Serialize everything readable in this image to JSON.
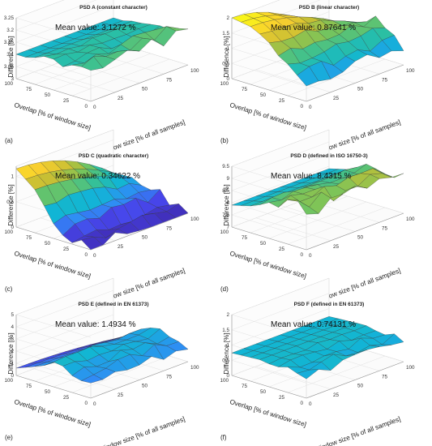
{
  "chart_data": [
    {
      "type": "surface",
      "panel_label": "(a)",
      "title": "PSD A (constant character)",
      "mean_text": "Mean value: 3.1272 %",
      "zlabel": "Difference [%]",
      "xlabel": "Window size [% of all samples]",
      "ylabel": "Overlap [% of window size]",
      "xticks": [
        "0",
        "25",
        "50",
        "75",
        "100"
      ],
      "yticks": [
        "0",
        "25",
        "50",
        "75",
        "100"
      ],
      "zticks": [
        "3",
        "3.05",
        "3.1",
        "3.15",
        "3.2",
        "3.25"
      ],
      "zlim": [
        3,
        3.25
      ],
      "surface": {
        "baseline": [
          3.14,
          3.14,
          3.13,
          3.12,
          3.12,
          3.12,
          3.11,
          3.1,
          3.1
        ],
        "slope": 0,
        "noise": 0.06,
        "noise_cols": 6,
        "seed": 11
      }
    },
    {
      "type": "surface",
      "panel_label": "(b)",
      "title": "PSD B (linear character)",
      "mean_text": "Mean value: 0.87641 %",
      "zlabel": "Difference [%]",
      "xlabel": "Window size [% of all samples]",
      "ylabel": "Overlap [% of window size]",
      "xticks": [
        "0",
        "25",
        "50",
        "75",
        "100"
      ],
      "yticks": [
        "0",
        "25",
        "50",
        "75",
        "100"
      ],
      "zticks": [
        "0",
        "0.5",
        "1",
        "1.5",
        "2"
      ],
      "zlim": [
        0,
        2
      ],
      "surface": {
        "baseline": [
          0.6,
          0.8,
          1.0,
          1.2,
          1.5,
          1.7,
          1.9,
          1.95,
          2.0
        ],
        "slope": -1.9,
        "noise": 0.45,
        "noise_cols": 6,
        "seed": 23
      }
    },
    {
      "type": "surface",
      "panel_label": "(c)",
      "title": "PSD C (quadratic character)",
      "mean_text": "Mean value: 0.34622 %",
      "zlabel": "Difference [%]",
      "xlabel": "Window size [% of all samples]",
      "ylabel": "Overlap [% of window size]",
      "xticks": [
        "0",
        "25",
        "50",
        "75",
        "100"
      ],
      "yticks": [
        "0",
        "25",
        "50",
        "75",
        "100"
      ],
      "zticks": [
        "0",
        "0.5",
        "1"
      ],
      "zlim": [
        0,
        1.2
      ],
      "surface": {
        "baseline": [
          0.05,
          0.08,
          0.1,
          0.2,
          0.35,
          0.6,
          0.85,
          1.0,
          1.15
        ],
        "slope": -0.8,
        "noise": 0.35,
        "noise_cols": 6,
        "seed": 37
      }
    },
    {
      "type": "surface",
      "panel_label": "(d)",
      "title": "PSD D (defined in ISO 16750-3)",
      "mean_text": "Mean value: 8.4315 %",
      "zlabel": "Difference [%]",
      "xlabel": "Window size [% of all samples]",
      "ylabel": "Overlap [% of window size]",
      "xticks": [
        "0",
        "25",
        "50",
        "75",
        "100"
      ],
      "yticks": [
        "0",
        "25",
        "50",
        "75",
        "100"
      ],
      "zticks": [
        "7",
        "7.5",
        "8",
        "8.5",
        "9",
        "9.5"
      ],
      "zlim": [
        7,
        9.5
      ],
      "surface": {
        "baseline": [
          8.6,
          8.6,
          8.6,
          8.5,
          8.4,
          8.3,
          8.1,
          8.0,
          7.9
        ],
        "slope": 0,
        "noise": 0.7,
        "noise_cols": 6,
        "seed": 41
      }
    },
    {
      "type": "surface",
      "panel_label": "(e)",
      "title": "PSD E (defined in EN 61373)",
      "mean_text": "Mean value: 1.4934 %",
      "zlabel": "Difference [%]",
      "xlabel": "Window size [% of all samples]",
      "ylabel": "Overlap [% of window size]",
      "xticks": [
        "0",
        "25",
        "50",
        "75",
        "100"
      ],
      "yticks": [
        "0",
        "25",
        "50",
        "75",
        "100"
      ],
      "zticks": [
        "0",
        "1",
        "2",
        "3",
        "4",
        "5"
      ],
      "zlim": [
        0,
        5
      ],
      "surface": {
        "baseline": [
          1.5,
          1.6,
          1.7,
          1.8,
          1.9,
          1.6,
          1.2,
          0.9,
          0.6
        ],
        "slope": -0.6,
        "noise": 1.3,
        "noise_cols": 6,
        "seed": 53
      }
    },
    {
      "type": "surface",
      "panel_label": "(f)",
      "title": "PSD F (defined in EN 61373)",
      "mean_text": "Mean value: 0.74131 %",
      "zlabel": "Difference [%]",
      "xlabel": "Window size [% of all samples]",
      "ylabel": "Overlap [% of window size]",
      "xticks": [
        "0",
        "25",
        "50",
        "75",
        "100"
      ],
      "yticks": [
        "0",
        "25",
        "50",
        "75",
        "100"
      ],
      "zticks": [
        "0",
        "0.5",
        "1",
        "1.5",
        "2"
      ],
      "zlim": [
        0,
        2
      ],
      "surface": {
        "baseline": [
          0.7,
          0.75,
          0.78,
          0.8,
          0.8,
          0.8,
          0.78,
          0.76,
          0.74
        ],
        "slope": 0,
        "noise": 0.35,
        "noise_cols": 5,
        "seed": 67
      }
    }
  ],
  "colormap": [
    "#3e26a8",
    "#4746eb",
    "#2f8df5",
    "#11b5d5",
    "#2cc0a0",
    "#77c45b",
    "#c6bf34",
    "#f9cf2e",
    "#f9fb15"
  ]
}
